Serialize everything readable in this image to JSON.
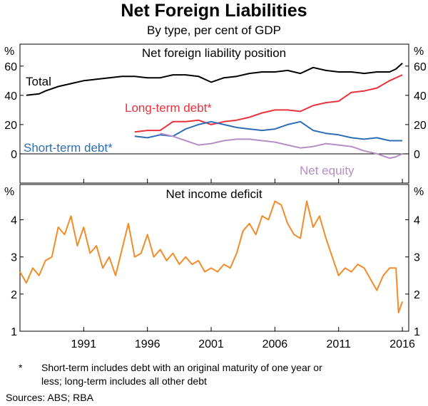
{
  "title": "Net Foreign Liabilities",
  "subtitle": "By type, per cent of GDP",
  "footnote": {
    "marker": "*",
    "line1": "Short-term includes debt with an original maturity of one year or",
    "line2": "less; long-term includes all other debt"
  },
  "sources": "Sources:   ABS; RBA",
  "colors": {
    "total": "#000000",
    "long_term": "#e8323c",
    "short_term": "#2e6db5",
    "net_equity": "#b48fc4",
    "income_deficit": "#f28c28"
  },
  "chart_data": [
    {
      "type": "line",
      "title": "Net foreign liability position",
      "ylabel_left": "%",
      "ylabel_right": "%",
      "ylim": [
        -20,
        75
      ],
      "yticks": [
        0,
        20,
        40,
        60
      ],
      "xlim": [
        1986,
        2016.5
      ],
      "series": [
        {
          "name": "Total",
          "color_key": "total",
          "x": [
            1986.5,
            1987.5,
            1988,
            1989,
            1990,
            1991,
            1992,
            1993,
            1994,
            1995,
            1996,
            1997,
            1998,
            1999,
            2000,
            2001,
            2002,
            2003,
            2004,
            2005,
            2006,
            2007,
            2008,
            2009,
            2010,
            2011,
            2012,
            2013,
            2014,
            2015,
            2015.5,
            2016
          ],
          "y": [
            40,
            41,
            43,
            46,
            48,
            50,
            51,
            52,
            53,
            53,
            52,
            52,
            54,
            54,
            53,
            49,
            52,
            53,
            55,
            56,
            56,
            57,
            55,
            59,
            57,
            56,
            56,
            55,
            56,
            56,
            58,
            62
          ]
        },
        {
          "name": "Long-term debt*",
          "color_key": "long_term",
          "x": [
            1995,
            1996,
            1997,
            1998,
            1999,
            2000,
            2001,
            2002,
            2003,
            2004,
            2005,
            2006,
            2007,
            2008,
            2009,
            2010,
            2011,
            2012,
            2013,
            2014,
            2015,
            2015.5,
            2016
          ],
          "y": [
            15,
            16,
            16,
            22,
            22,
            23,
            20,
            22,
            23,
            25,
            28,
            30,
            30,
            29,
            33,
            35,
            36,
            42,
            43,
            45,
            50,
            52,
            54
          ]
        },
        {
          "name": "Short-term debt*",
          "color_key": "short_term",
          "x": [
            1995,
            1996,
            1997,
            1998,
            1999,
            2000,
            2001,
            2002,
            2003,
            2004,
            2005,
            2006,
            2007,
            2008,
            2009,
            2010,
            2011,
            2012,
            2013,
            2014,
            2015,
            2016
          ],
          "y": [
            12,
            11,
            13,
            12,
            17,
            20,
            22,
            20,
            18,
            17,
            16,
            17,
            20,
            22,
            16,
            14,
            13,
            11,
            10,
            11,
            9,
            9
          ]
        },
        {
          "name": "Net equity",
          "color_key": "net_equity",
          "x": [
            1997,
            1998,
            1999,
            2000,
            2001,
            2002,
            2003,
            2004,
            2005,
            2006,
            2007,
            2008,
            2009,
            2010,
            2011,
            2012,
            2013,
            2014,
            2015,
            2015.5,
            2016
          ],
          "y": [
            14,
            12,
            9,
            6,
            7,
            9,
            10,
            10,
            9,
            8,
            6,
            4,
            5,
            7,
            6,
            5,
            2,
            0,
            -3,
            -2,
            0
          ]
        }
      ]
    },
    {
      "type": "line",
      "title": "Net income deficit",
      "ylabel_left": "%",
      "ylabel_right": "%",
      "ylim": [
        1,
        4.95
      ],
      "yticks": [
        1,
        2,
        3,
        4
      ],
      "xlabel_ticks": [
        "1991",
        "1996",
        "2001",
        "2006",
        "2011",
        "2016"
      ],
      "xticks": [
        1991,
        1996,
        2001,
        2006,
        2011,
        2016
      ],
      "xlim": [
        1986,
        2016.5
      ],
      "series": [
        {
          "name": "Net income deficit",
          "color_key": "income_deficit",
          "x": [
            1986,
            1986.5,
            1987,
            1987.5,
            1988,
            1988.5,
            1989,
            1989.5,
            1990,
            1990.5,
            1991,
            1991.5,
            1992,
            1992.5,
            1993,
            1993.5,
            1994,
            1994.5,
            1995,
            1995.5,
            1996,
            1996.5,
            1997,
            1997.5,
            1998,
            1998.5,
            1999,
            1999.5,
            2000,
            2000.5,
            2001,
            2001.5,
            2002,
            2002.5,
            2003,
            2003.5,
            2004,
            2004.5,
            2005,
            2005.5,
            2006,
            2006.5,
            2007,
            2007.5,
            2008,
            2008.5,
            2009,
            2009.5,
            2010,
            2010.5,
            2011,
            2011.5,
            2012,
            2012.5,
            2013,
            2013.5,
            2014,
            2014.5,
            2015,
            2015.5,
            2015.7,
            2016
          ],
          "y": [
            2.6,
            2.3,
            2.7,
            2.5,
            2.9,
            3.0,
            3.8,
            3.6,
            4.1,
            3.3,
            3.8,
            3.1,
            3.3,
            2.7,
            3.0,
            2.5,
            3.2,
            3.9,
            3.0,
            3.1,
            3.6,
            3.0,
            3.2,
            2.9,
            3.1,
            2.8,
            3.0,
            2.8,
            2.9,
            2.6,
            2.7,
            2.6,
            2.8,
            2.7,
            3.1,
            3.7,
            3.9,
            3.6,
            4.1,
            4.0,
            4.5,
            4.4,
            3.9,
            3.6,
            3.5,
            4.5,
            3.8,
            4.1,
            3.5,
            3.0,
            2.5,
            2.7,
            2.6,
            2.8,
            2.7,
            2.4,
            2.1,
            2.5,
            2.7,
            2.7,
            1.5,
            1.8
          ]
        }
      ]
    }
  ]
}
